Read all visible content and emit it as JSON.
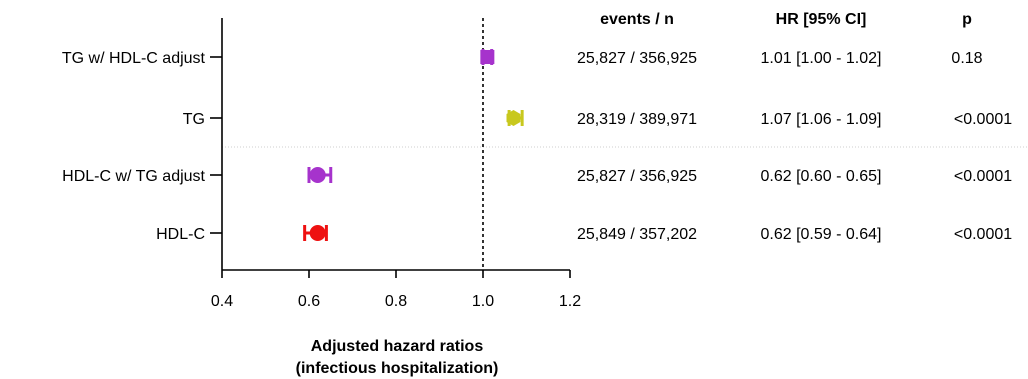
{
  "chart_data": {
    "type": "forest",
    "xlabel": [
      "Adjusted hazard ratios",
      "(infectious hospitalization)"
    ],
    "xlim": [
      0.4,
      1.2
    ],
    "xticks": [
      0.4,
      0.6,
      0.8,
      1.0,
      1.2
    ],
    "xtick_labels": [
      "0.4",
      "0.6",
      "0.8",
      "1.0",
      "1.2"
    ],
    "reference_line": 1.0,
    "columns": [
      "events / n",
      "HR [95% CI]",
      "p"
    ],
    "rows": [
      {
        "label": "TG w/ HDL-C adjust",
        "hr": 1.01,
        "lo": 1.0,
        "hi": 1.02,
        "events_n": "25,827 / 356,925",
        "hr_ci": "1.01 [1.00 - 1.02]",
        "p": "0.18",
        "color": "#a633cc",
        "marker": "square"
      },
      {
        "label": "TG",
        "hr": 1.07,
        "lo": 1.06,
        "hi": 1.09,
        "events_n": "28,319  / 389,971",
        "hr_ci": "1.07 [1.06 - 1.09]",
        "p": "<0.0001",
        "color": "#c8c81e",
        "marker": "hexagon"
      },
      {
        "label": "HDL-C w/ TG adjust",
        "hr": 0.62,
        "lo": 0.6,
        "hi": 0.65,
        "events_n": "25,827 / 356,925",
        "hr_ci": "0.62 [0.60 - 0.65]",
        "p": "<0.0001",
        "color": "#a633cc",
        "marker": "circle"
      },
      {
        "label": "HDL-C",
        "hr": 0.62,
        "lo": 0.59,
        "hi": 0.64,
        "events_n": "25,849 / 357,202",
        "hr_ci": "0.62 [0.59 - 0.64]",
        "p": "<0.0001",
        "color": "#ee1111",
        "marker": "circle"
      }
    ]
  }
}
